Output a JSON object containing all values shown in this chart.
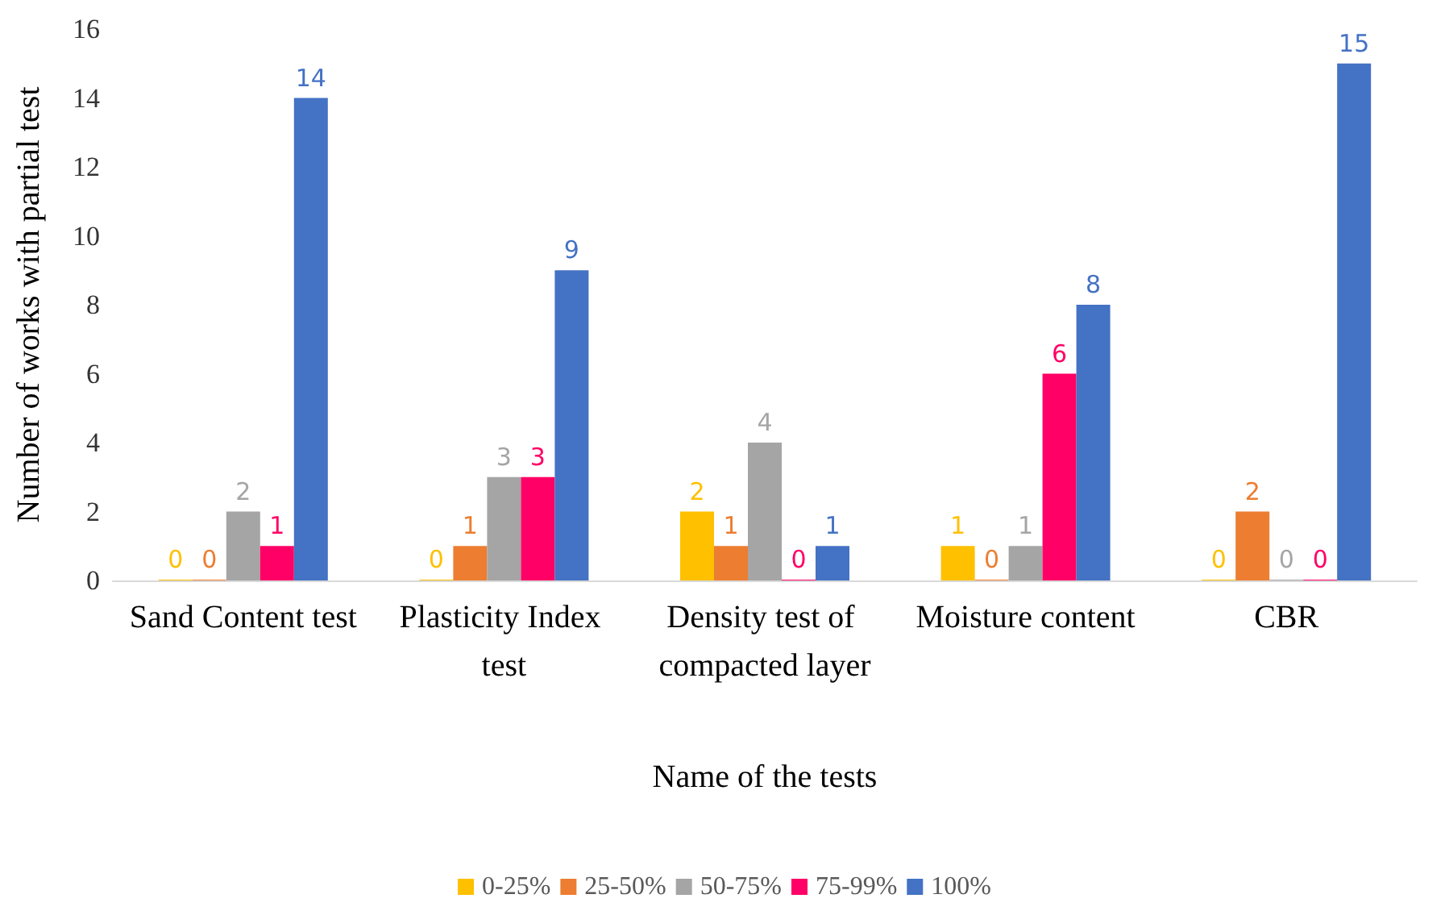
{
  "chart_data": {
    "type": "bar",
    "xlabel": "Name of the tests",
    "ylabel": "Number of works with partial test",
    "categories": [
      "Sand Content test",
      "Plasticity Index test",
      "Density test of compacted layer",
      "Moisture content",
      "CBR"
    ],
    "series": [
      {
        "name": "0-25%",
        "color": "#ffc000",
        "values": [
          0,
          0,
          2,
          1,
          0
        ]
      },
      {
        "name": "25-50%",
        "color": "#ed7d31",
        "values": [
          0,
          1,
          1,
          0,
          2
        ]
      },
      {
        "name": "50-75%",
        "color": "#a5a5a5",
        "values": [
          2,
          3,
          4,
          1,
          0
        ]
      },
      {
        "name": "75-99%",
        "color": "#ff0066",
        "values": [
          1,
          3,
          0,
          6,
          0
        ]
      },
      {
        "name": "100%",
        "color": "#4472c4",
        "values": [
          14,
          9,
          1,
          8,
          15
        ]
      }
    ],
    "ylim": [
      0,
      16
    ],
    "yticks": [
      0,
      2,
      4,
      6,
      8,
      10,
      12,
      14,
      16
    ],
    "grid": false,
    "legend": "bottom",
    "data_labels": true
  }
}
